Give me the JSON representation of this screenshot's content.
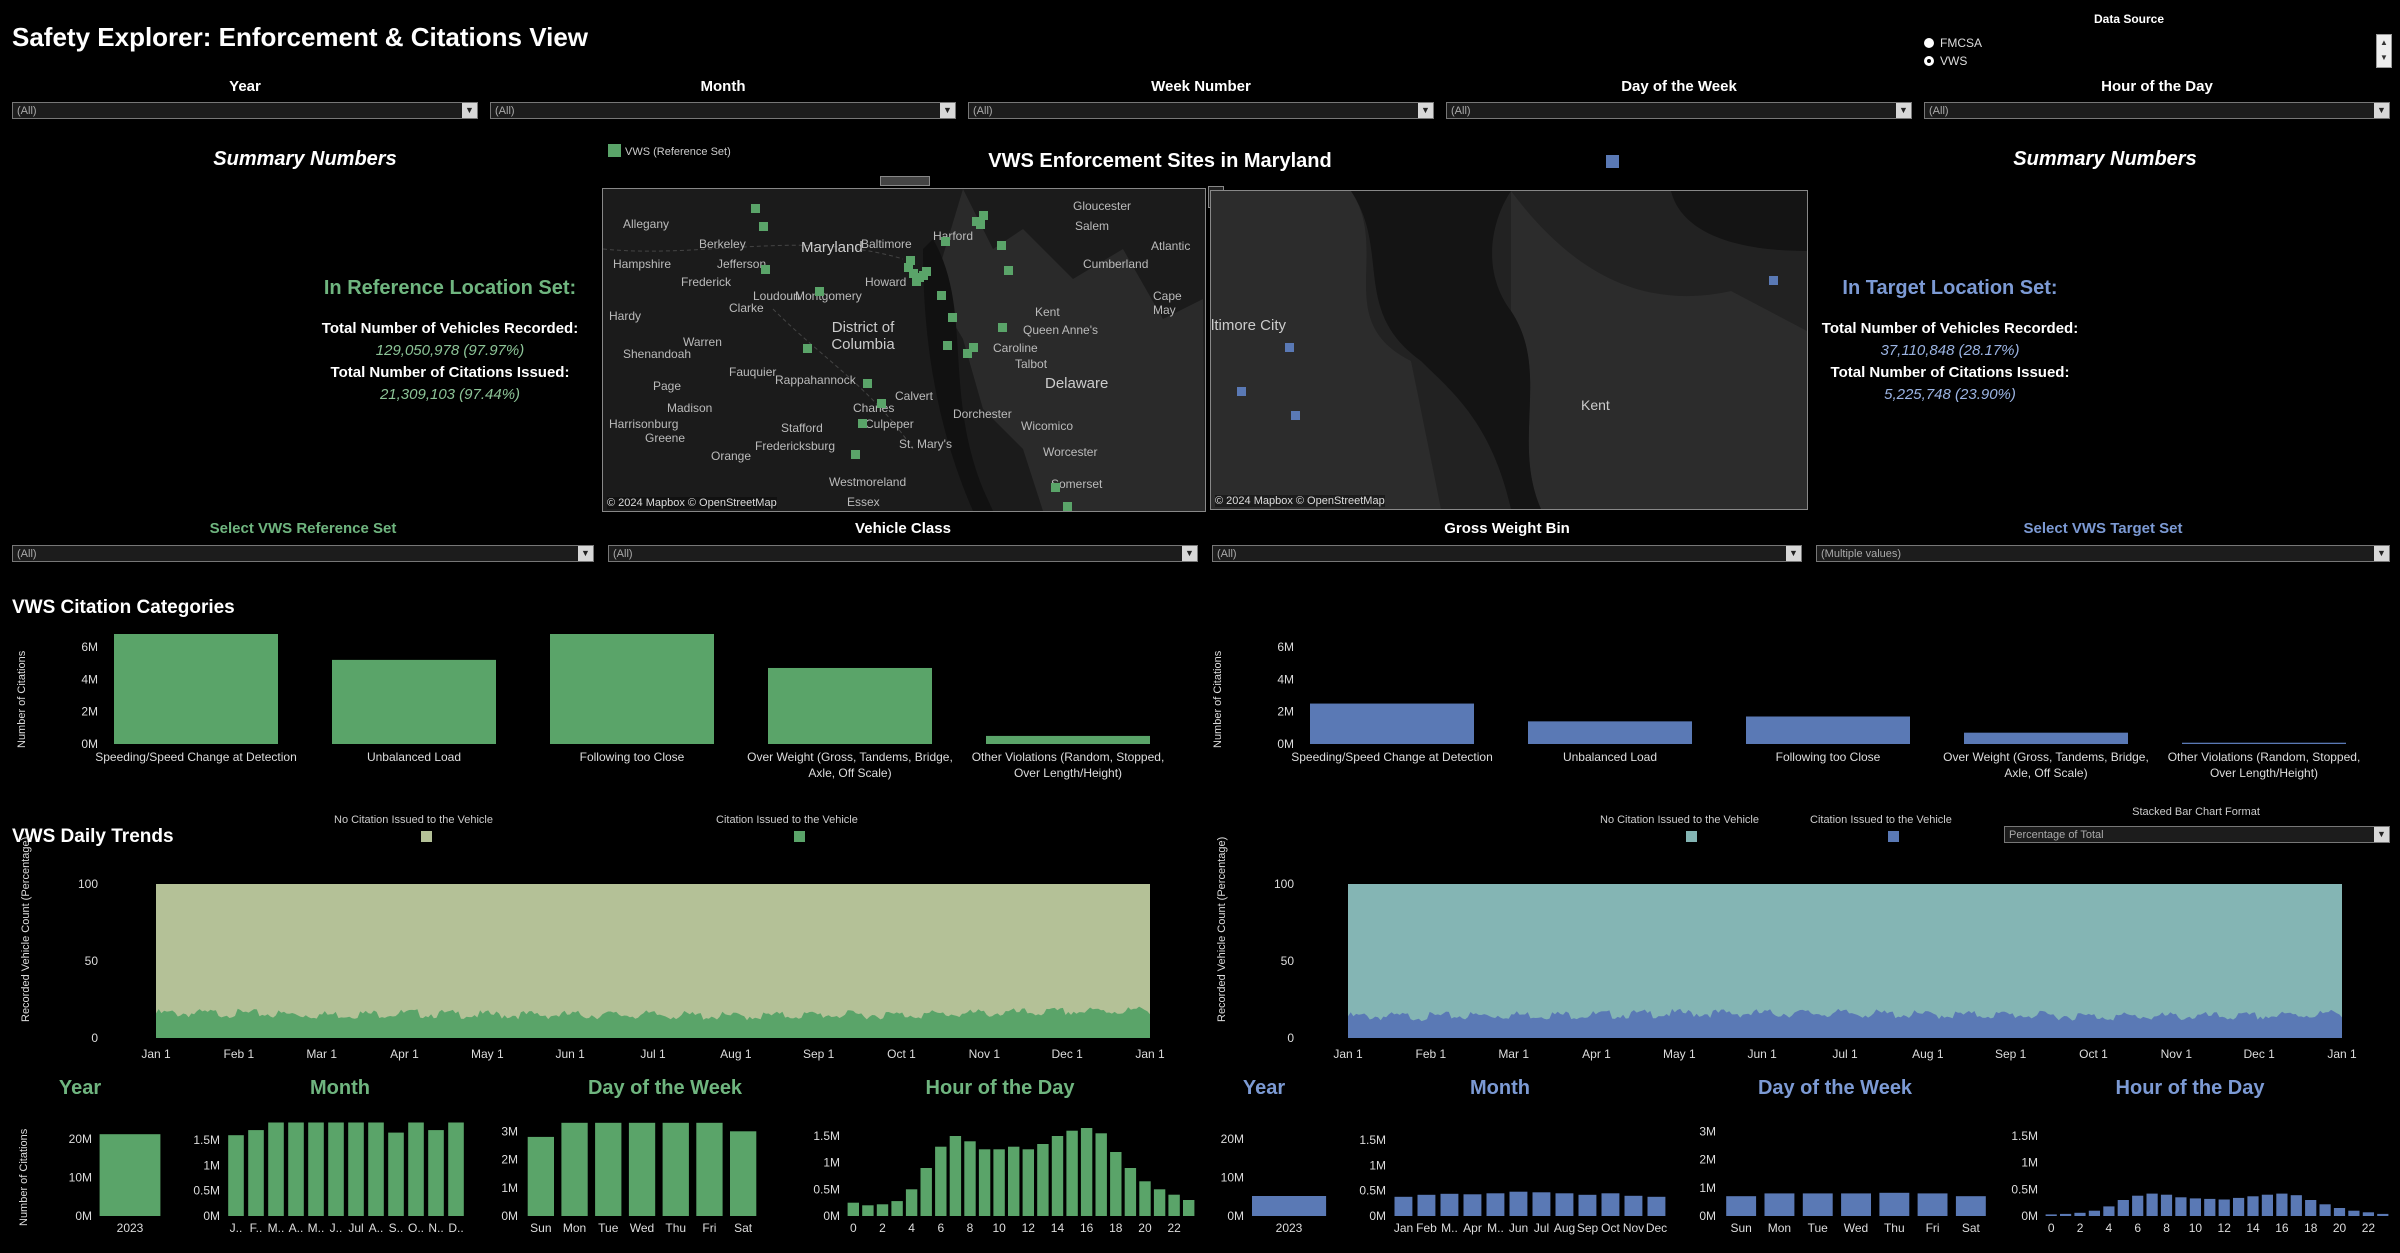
{
  "title": "Safety Explorer: Enforcement & Citations View",
  "data_source": {
    "label": "Data Source",
    "options": [
      "FMCSA",
      "VWS"
    ],
    "selected": "VWS"
  },
  "filters": {
    "year": {
      "label": "Year",
      "value": "(All)"
    },
    "month": {
      "label": "Month",
      "value": "(All)"
    },
    "week": {
      "label": "Week Number",
      "value": "(All)"
    },
    "dow": {
      "label": "Day of the Week",
      "value": "(All)"
    },
    "hour": {
      "label": "Hour of the Day",
      "value": "(All)"
    },
    "ref_set": {
      "label": "Select VWS Reference Set",
      "value": "(All)"
    },
    "vehicle_class": {
      "label": "Vehicle Class",
      "value": "(All)"
    },
    "gross_weight": {
      "label": "Gross Weight Bin",
      "value": "(All)"
    },
    "target_set": {
      "label": "Select VWS Target Set",
      "value": "(Multiple values)"
    }
  },
  "summary_left": {
    "heading": "Summary Numbers",
    "set_title": "In Reference Location Set:",
    "vehicles_label": "Total Number of Vehicles Recorded:",
    "vehicles_value": "129,050,978 (97.97%)",
    "citations_label": "Total Number of Citations Issued:",
    "citations_value": "21,309,103 (97.44%)"
  },
  "summary_right": {
    "heading": "Summary Numbers",
    "set_title": "In Target Location Set:",
    "vehicles_label": "Total Number of Vehicles Recorded:",
    "vehicles_value": "37,110,848 (28.17%)",
    "citations_label": "Total Number of Citations Issued:",
    "citations_value": "5,225,748 (23.90%)"
  },
  "map": {
    "title": "VWS Enforcement Sites in Maryland",
    "legend_left": "VWS (Reference Set)",
    "attribution": "© 2024 Mapbox © OpenStreetMap",
    "left_labels": [
      "Gloucester",
      "Salem",
      "Maryland",
      "Baltimore",
      "Harford",
      "Atlantic",
      "Allegany",
      "Berkeley",
      "Cumberland",
      "Hampshire",
      "Jefferson",
      "Frederick",
      "Montgomery",
      "Howard",
      "Cape May",
      "Hardy",
      "Clarke",
      "Loudoun",
      "District of Columbia",
      "Kent",
      "Warren",
      "Shenandoah",
      "Queen Anne's",
      "Caroline",
      "Fauquier",
      "Talbot",
      "Delaware",
      "Page",
      "Rappahannock",
      "Dorchester",
      "Calvert",
      "Charles",
      "Wicomico",
      "Madison",
      "Stafford",
      "Harrisonburg",
      "Culpeper",
      "Fredericksburg",
      "St. Mary's",
      "Worcester",
      "Orange",
      "Greene",
      "Westmoreland",
      "Somerset",
      "Essex"
    ],
    "right_labels": [
      "Baltimore City",
      "Kent"
    ],
    "colors": {
      "reference": "#5aa469",
      "target": "#5a79b5"
    }
  },
  "citation_categories": {
    "title": "VWS Citation Categories",
    "ylabel": "Number of Citations"
  },
  "daily_trends": {
    "title": "VWS Daily Trends",
    "legend_no": "No Citation Issued to the Vehicle",
    "legend_yes": "Citation Issued to the Vehicle",
    "format_label": "Stacked Bar Chart Format",
    "format_value": "Percentage of Total",
    "ylabel": "Recorded Vehicle Count (Percentage)"
  },
  "bottom_titles": {
    "year": "Year",
    "month": "Month",
    "dow": "Day of the Week",
    "hour": "Hour of the Day",
    "ylabel": "Number of Citations"
  },
  "chart_data": [
    {
      "id": "ref_categories",
      "type": "bar",
      "categories": [
        "Speeding/Speed Change at Detection",
        "Unbalanced Load",
        "Following too Close",
        "Over Weight (Gross, Tandems, Bridge, Axle, Off Scale)",
        "Other Violations (Random, Stopped, Over Length/Height)"
      ],
      "values": [
        6800000,
        5200000,
        6800000,
        4700000,
        500000
      ],
      "ylabel": "Number of Citations",
      "ylim": [
        0,
        6800000
      ],
      "yticks": [
        "0M",
        "2M",
        "4M",
        "6M"
      ],
      "color": "#5aa469"
    },
    {
      "id": "target_categories",
      "type": "bar",
      "categories": [
        "Speeding/Speed Change at Detection",
        "Unbalanced Load",
        "Following too Close",
        "Over Weight (Gross, Tandems, Bridge, Axle, Off Scale)",
        "Other Violations (Random, Stopped, Over Length/Height)"
      ],
      "values": [
        2500000,
        1400000,
        1700000,
        700000,
        80000
      ],
      "ylabel": "Number of Citations",
      "ylim": [
        0,
        6800000
      ],
      "yticks": [
        "0M",
        "2M",
        "4M",
        "6M"
      ],
      "color": "#5a79b5"
    },
    {
      "id": "ref_daily",
      "type": "area",
      "x": [
        "Jan 1",
        "Feb 1",
        "Mar 1",
        "Apr 1",
        "May 1",
        "Jun 1",
        "Jul 1",
        "Aug 1",
        "Sep 1",
        "Oct 1",
        "Nov 1",
        "Dec 1",
        "Jan 1"
      ],
      "series": [
        {
          "name": "No Citation Issued to the Vehicle",
          "values": [
            84,
            84,
            85,
            84,
            85,
            85,
            85,
            86,
            85,
            85,
            84,
            83,
            82
          ],
          "color": "#b4c197"
        },
        {
          "name": "Citation Issued to the Vehicle",
          "values": [
            16,
            16,
            15,
            16,
            15,
            15,
            15,
            14,
            15,
            15,
            16,
            17,
            18
          ],
          "color": "#5aa469"
        }
      ],
      "ylabel": "Recorded Vehicle Count (Percentage)",
      "ylim": [
        0,
        100
      ],
      "yticks": [
        "0",
        "50",
        "100"
      ]
    },
    {
      "id": "target_daily",
      "type": "area",
      "x": [
        "Jan 1",
        "Feb 1",
        "Mar 1",
        "Apr 1",
        "May 1",
        "Jun 1",
        "Jul 1",
        "Aug 1",
        "Sep 1",
        "Oct 1",
        "Nov 1",
        "Dec 1",
        "Jan 1"
      ],
      "series": [
        {
          "name": "No Citation Issued to the Vehicle",
          "values": [
            86,
            86,
            85,
            85,
            84,
            84,
            84,
            85,
            85,
            86,
            86,
            86,
            84
          ],
          "color": "#84b5b4"
        },
        {
          "name": "Citation Issued to the Vehicle",
          "values": [
            14,
            14,
            15,
            15,
            16,
            16,
            16,
            15,
            15,
            14,
            14,
            14,
            16
          ],
          "color": "#5a79b5"
        }
      ],
      "ylabel": "Recorded Vehicle Count (Percentage)",
      "ylim": [
        0,
        100
      ],
      "yticks": [
        "0",
        "50",
        "100"
      ]
    },
    {
      "id": "ref_year",
      "type": "bar",
      "categories": [
        "2023"
      ],
      "values": [
        21300000
      ],
      "ylim": [
        0,
        25000000
      ],
      "yticks": [
        "0M",
        "10M",
        "20M"
      ],
      "ylabel": "Number of Citations",
      "color": "#5aa469"
    },
    {
      "id": "ref_month",
      "type": "bar",
      "categories": [
        "J..",
        "F..",
        "M..",
        "A..",
        "M..",
        "J..",
        "Jul",
        "A..",
        "S..",
        "O..",
        "N..",
        "D.."
      ],
      "values": [
        1600000,
        1700000,
        1850000,
        1850000,
        1850000,
        1850000,
        1850000,
        1850000,
        1650000,
        1850000,
        1700000,
        1850000
      ],
      "ylim": [
        0,
        1900000
      ],
      "yticks": [
        "0M",
        "0.5M",
        "1M",
        "1.5M"
      ],
      "color": "#5aa469"
    },
    {
      "id": "ref_dow",
      "type": "bar",
      "categories": [
        "Sun",
        "Mon",
        "Tue",
        "Wed",
        "Thu",
        "Fri",
        "Sat"
      ],
      "values": [
        2800000,
        3300000,
        3300000,
        3300000,
        3300000,
        3300000,
        3000000
      ],
      "ylim": [
        0,
        3400000
      ],
      "yticks": [
        "0M",
        "1M",
        "2M",
        "3M"
      ],
      "color": "#5aa469"
    },
    {
      "id": "ref_hour",
      "type": "bar",
      "categories": [
        "0",
        "1",
        "2",
        "3",
        "4",
        "5",
        "6",
        "7",
        "8",
        "9",
        "10",
        "11",
        "12",
        "13",
        "14",
        "15",
        "16",
        "17",
        "18",
        "19",
        "20",
        "21",
        "22",
        "23"
      ],
      "xticks": [
        "0",
        "2",
        "4",
        "6",
        "8",
        "10",
        "12",
        "14",
        "16",
        "18",
        "20",
        "22"
      ],
      "values": [
        250000,
        200000,
        220000,
        280000,
        500000,
        900000,
        1300000,
        1500000,
        1400000,
        1250000,
        1250000,
        1300000,
        1250000,
        1350000,
        1500000,
        1600000,
        1650000,
        1550000,
        1200000,
        900000,
        650000,
        500000,
        400000,
        300000
      ],
      "ylim": [
        0,
        1800000
      ],
      "yticks": [
        "0M",
        "0.5M",
        "1M",
        "1.5M"
      ],
      "color": "#5aa469"
    },
    {
      "id": "target_year",
      "type": "bar",
      "categories": [
        "2023"
      ],
      "values": [
        5200000
      ],
      "ylim": [
        0,
        25000000
      ],
      "yticks": [
        "0M",
        "10M",
        "20M"
      ],
      "color": "#5a79b5"
    },
    {
      "id": "target_month",
      "type": "bar",
      "categories": [
        "Jan",
        "Feb",
        "M..",
        "Apr",
        "M..",
        "Jun",
        "Jul",
        "Aug",
        "Sep",
        "Oct",
        "Nov",
        "Dec"
      ],
      "values": [
        380000,
        420000,
        440000,
        430000,
        450000,
        480000,
        470000,
        450000,
        420000,
        450000,
        400000,
        380000
      ],
      "ylim": [
        0,
        1900000
      ],
      "yticks": [
        "0M",
        "0.5M",
        "1M",
        "1.5M"
      ],
      "color": "#5a79b5"
    },
    {
      "id": "target_dow",
      "type": "bar",
      "categories": [
        "Sun",
        "Mon",
        "Tue",
        "Wed",
        "Thu",
        "Fri",
        "Sat"
      ],
      "values": [
        700000,
        800000,
        800000,
        800000,
        820000,
        800000,
        700000
      ],
      "ylim": [
        0,
        3400000
      ],
      "yticks": [
        "0M",
        "1M",
        "2M",
        "3M"
      ],
      "color": "#5a79b5"
    },
    {
      "id": "target_hour",
      "type": "bar",
      "categories": [
        "0",
        "1",
        "2",
        "3",
        "4",
        "5",
        "6",
        "7",
        "8",
        "9",
        "10",
        "11",
        "12",
        "13",
        "14",
        "15",
        "16",
        "17",
        "18",
        "19",
        "20",
        "21",
        "22",
        "23"
      ],
      "xticks": [
        "0",
        "2",
        "4",
        "6",
        "8",
        "10",
        "12",
        "14",
        "16",
        "18",
        "20",
        "22"
      ],
      "values": [
        30000,
        40000,
        60000,
        100000,
        180000,
        300000,
        380000,
        420000,
        400000,
        350000,
        330000,
        320000,
        310000,
        340000,
        370000,
        400000,
        420000,
        390000,
        300000,
        220000,
        150000,
        100000,
        70000,
        40000
      ],
      "ylim": [
        0,
        1800000
      ],
      "yticks": [
        "0M",
        "0.5M",
        "1M",
        "1.5M"
      ],
      "color": "#5a79b5"
    }
  ]
}
